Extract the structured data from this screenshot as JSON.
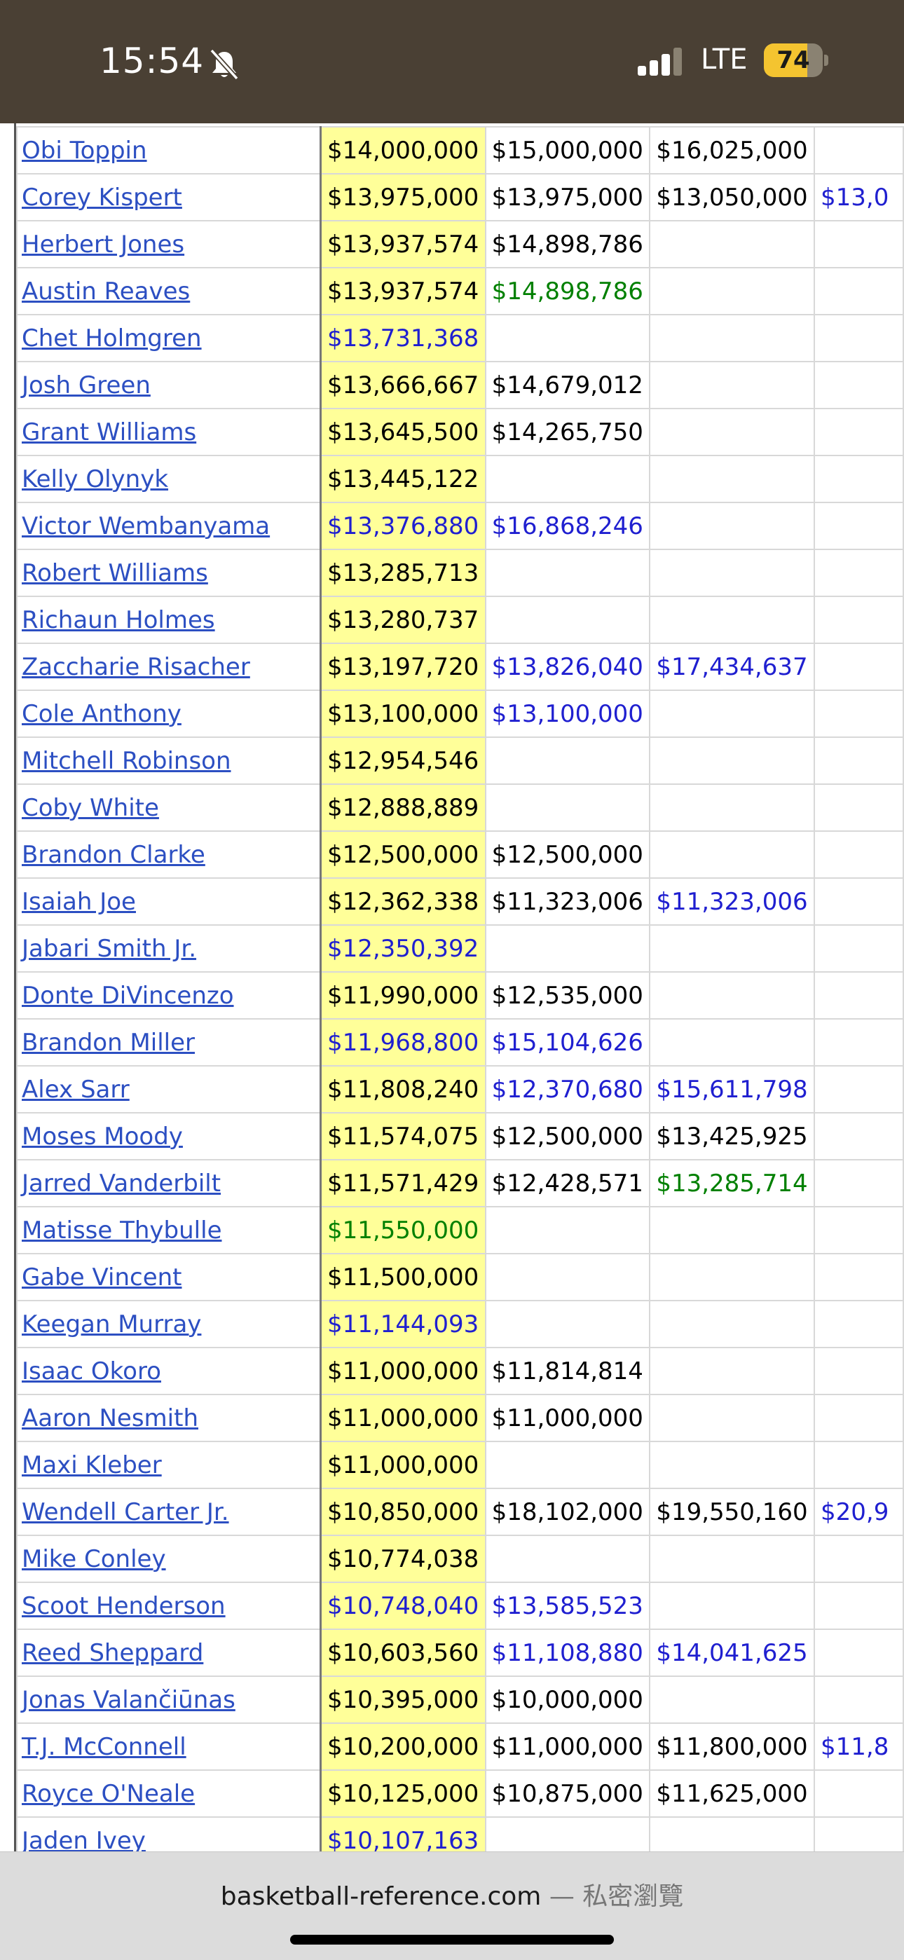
{
  "status_bar": {
    "time": "15:54",
    "network": "LTE",
    "battery_level": "74",
    "battery_fraction": 0.74,
    "icons": [
      "bell-slash-icon",
      "cellular-signal-icon",
      "battery-icon"
    ]
  },
  "table": {
    "rows": [
      {
        "player": "Obi Toppin",
        "c1": {
          "v": "$14,000,000",
          "t": "pl"
        },
        "c2": {
          "v": "$15,000,000",
          "t": "pl"
        },
        "c3": {
          "v": "$16,025,000",
          "t": "pl"
        },
        "c4": {
          "v": "",
          "t": "pl"
        }
      },
      {
        "player": "Corey Kispert",
        "c1": {
          "v": "$13,975,000",
          "t": "pl"
        },
        "c2": {
          "v": "$13,975,000",
          "t": "pl"
        },
        "c3": {
          "v": "$13,050,000",
          "t": "pl"
        },
        "c4": {
          "v": "$13,0",
          "t": "opt"
        }
      },
      {
        "player": "Herbert Jones",
        "c1": {
          "v": "$13,937,574",
          "t": "pl"
        },
        "c2": {
          "v": "$14,898,786",
          "t": "pl"
        },
        "c3": {
          "v": "",
          "t": "pl"
        },
        "c4": {
          "v": "",
          "t": "pl"
        }
      },
      {
        "player": "Austin Reaves",
        "c1": {
          "v": "$13,937,574",
          "t": "pl"
        },
        "c2": {
          "v": "$14,898,786",
          "t": "grn"
        },
        "c3": {
          "v": "",
          "t": "pl"
        },
        "c4": {
          "v": "",
          "t": "pl"
        }
      },
      {
        "player": "Chet Holmgren",
        "c1": {
          "v": "$13,731,368",
          "t": "opt"
        },
        "c2": {
          "v": "",
          "t": "pl"
        },
        "c3": {
          "v": "",
          "t": "pl"
        },
        "c4": {
          "v": "",
          "t": "pl"
        }
      },
      {
        "player": "Josh Green",
        "c1": {
          "v": "$13,666,667",
          "t": "pl"
        },
        "c2": {
          "v": "$14,679,012",
          "t": "pl"
        },
        "c3": {
          "v": "",
          "t": "pl"
        },
        "c4": {
          "v": "",
          "t": "pl"
        }
      },
      {
        "player": "Grant Williams",
        "c1": {
          "v": "$13,645,500",
          "t": "pl"
        },
        "c2": {
          "v": "$14,265,750",
          "t": "pl"
        },
        "c3": {
          "v": "",
          "t": "pl"
        },
        "c4": {
          "v": "",
          "t": "pl"
        }
      },
      {
        "player": "Kelly Olynyk",
        "c1": {
          "v": "$13,445,122",
          "t": "pl"
        },
        "c2": {
          "v": "",
          "t": "pl"
        },
        "c3": {
          "v": "",
          "t": "pl"
        },
        "c4": {
          "v": "",
          "t": "pl"
        }
      },
      {
        "player": "Victor Wembanyama",
        "c1": {
          "v": "$13,376,880",
          "t": "opt"
        },
        "c2": {
          "v": "$16,868,246",
          "t": "opt"
        },
        "c3": {
          "v": "",
          "t": "pl"
        },
        "c4": {
          "v": "",
          "t": "pl"
        }
      },
      {
        "player": "Robert Williams",
        "c1": {
          "v": "$13,285,713",
          "t": "pl"
        },
        "c2": {
          "v": "",
          "t": "pl"
        },
        "c3": {
          "v": "",
          "t": "pl"
        },
        "c4": {
          "v": "",
          "t": "pl"
        }
      },
      {
        "player": "Richaun Holmes",
        "c1": {
          "v": "$13,280,737",
          "t": "pl"
        },
        "c2": {
          "v": "",
          "t": "pl"
        },
        "c3": {
          "v": "",
          "t": "pl"
        },
        "c4": {
          "v": "",
          "t": "pl"
        }
      },
      {
        "player": "Zaccharie Risacher",
        "c1": {
          "v": "$13,197,720",
          "t": "pl"
        },
        "c2": {
          "v": "$13,826,040",
          "t": "opt"
        },
        "c3": {
          "v": "$17,434,637",
          "t": "opt"
        },
        "c4": {
          "v": "",
          "t": "pl"
        }
      },
      {
        "player": "Cole Anthony",
        "c1": {
          "v": "$13,100,000",
          "t": "pl"
        },
        "c2": {
          "v": "$13,100,000",
          "t": "opt"
        },
        "c3": {
          "v": "",
          "t": "pl"
        },
        "c4": {
          "v": "",
          "t": "pl"
        }
      },
      {
        "player": "Mitchell Robinson",
        "c1": {
          "v": "$12,954,546",
          "t": "pl"
        },
        "c2": {
          "v": "",
          "t": "pl"
        },
        "c3": {
          "v": "",
          "t": "pl"
        },
        "c4": {
          "v": "",
          "t": "pl"
        }
      },
      {
        "player": "Coby White",
        "c1": {
          "v": "$12,888,889",
          "t": "pl"
        },
        "c2": {
          "v": "",
          "t": "pl"
        },
        "c3": {
          "v": "",
          "t": "pl"
        },
        "c4": {
          "v": "",
          "t": "pl"
        }
      },
      {
        "player": "Brandon Clarke",
        "c1": {
          "v": "$12,500,000",
          "t": "pl"
        },
        "c2": {
          "v": "$12,500,000",
          "t": "pl"
        },
        "c3": {
          "v": "",
          "t": "pl"
        },
        "c4": {
          "v": "",
          "t": "pl"
        }
      },
      {
        "player": "Isaiah Joe",
        "c1": {
          "v": "$12,362,338",
          "t": "pl"
        },
        "c2": {
          "v": "$11,323,006",
          "t": "pl"
        },
        "c3": {
          "v": "$11,323,006",
          "t": "opt"
        },
        "c4": {
          "v": "",
          "t": "pl"
        }
      },
      {
        "player": "Jabari Smith Jr.",
        "c1": {
          "v": "$12,350,392",
          "t": "opt"
        },
        "c2": {
          "v": "",
          "t": "pl"
        },
        "c3": {
          "v": "",
          "t": "pl"
        },
        "c4": {
          "v": "",
          "t": "pl"
        }
      },
      {
        "player": "Donte DiVincenzo",
        "c1": {
          "v": "$11,990,000",
          "t": "pl"
        },
        "c2": {
          "v": "$12,535,000",
          "t": "pl"
        },
        "c3": {
          "v": "",
          "t": "pl"
        },
        "c4": {
          "v": "",
          "t": "pl"
        }
      },
      {
        "player": "Brandon Miller",
        "c1": {
          "v": "$11,968,800",
          "t": "opt"
        },
        "c2": {
          "v": "$15,104,626",
          "t": "opt"
        },
        "c3": {
          "v": "",
          "t": "pl"
        },
        "c4": {
          "v": "",
          "t": "pl"
        }
      },
      {
        "player": "Alex Sarr",
        "c1": {
          "v": "$11,808,240",
          "t": "pl"
        },
        "c2": {
          "v": "$12,370,680",
          "t": "opt"
        },
        "c3": {
          "v": "$15,611,798",
          "t": "opt"
        },
        "c4": {
          "v": "",
          "t": "pl"
        }
      },
      {
        "player": "Moses Moody",
        "c1": {
          "v": "$11,574,075",
          "t": "pl"
        },
        "c2": {
          "v": "$12,500,000",
          "t": "pl"
        },
        "c3": {
          "v": "$13,425,925",
          "t": "pl"
        },
        "c4": {
          "v": "",
          "t": "pl"
        }
      },
      {
        "player": "Jarred Vanderbilt",
        "c1": {
          "v": "$11,571,429",
          "t": "pl"
        },
        "c2": {
          "v": "$12,428,571",
          "t": "pl"
        },
        "c3": {
          "v": "$13,285,714",
          "t": "grn"
        },
        "c4": {
          "v": "",
          "t": "pl"
        }
      },
      {
        "player": "Matisse Thybulle",
        "c1": {
          "v": "$11,550,000",
          "t": "grn"
        },
        "c2": {
          "v": "",
          "t": "pl"
        },
        "c3": {
          "v": "",
          "t": "pl"
        },
        "c4": {
          "v": "",
          "t": "pl"
        }
      },
      {
        "player": "Gabe Vincent",
        "c1": {
          "v": "$11,500,000",
          "t": "pl"
        },
        "c2": {
          "v": "",
          "t": "pl"
        },
        "c3": {
          "v": "",
          "t": "pl"
        },
        "c4": {
          "v": "",
          "t": "pl"
        }
      },
      {
        "player": "Keegan Murray",
        "c1": {
          "v": "$11,144,093",
          "t": "opt"
        },
        "c2": {
          "v": "",
          "t": "pl"
        },
        "c3": {
          "v": "",
          "t": "pl"
        },
        "c4": {
          "v": "",
          "t": "pl"
        }
      },
      {
        "player": "Isaac Okoro",
        "c1": {
          "v": "$11,000,000",
          "t": "pl"
        },
        "c2": {
          "v": "$11,814,814",
          "t": "pl"
        },
        "c3": {
          "v": "",
          "t": "pl"
        },
        "c4": {
          "v": "",
          "t": "pl"
        }
      },
      {
        "player": "Aaron Nesmith",
        "c1": {
          "v": "$11,000,000",
          "t": "pl"
        },
        "c2": {
          "v": "$11,000,000",
          "t": "pl"
        },
        "c3": {
          "v": "",
          "t": "pl"
        },
        "c4": {
          "v": "",
          "t": "pl"
        }
      },
      {
        "player": "Maxi Kleber",
        "c1": {
          "v": "$11,000,000",
          "t": "pl"
        },
        "c2": {
          "v": "",
          "t": "pl"
        },
        "c3": {
          "v": "",
          "t": "pl"
        },
        "c4": {
          "v": "",
          "t": "pl"
        }
      },
      {
        "player": "Wendell Carter Jr.",
        "c1": {
          "v": "$10,850,000",
          "t": "pl"
        },
        "c2": {
          "v": "$18,102,000",
          "t": "pl"
        },
        "c3": {
          "v": "$19,550,160",
          "t": "pl"
        },
        "c4": {
          "v": "$20,9",
          "t": "opt"
        }
      },
      {
        "player": "Mike Conley",
        "c1": {
          "v": "$10,774,038",
          "t": "pl"
        },
        "c2": {
          "v": "",
          "t": "pl"
        },
        "c3": {
          "v": "",
          "t": "pl"
        },
        "c4": {
          "v": "",
          "t": "pl"
        }
      },
      {
        "player": "Scoot Henderson",
        "c1": {
          "v": "$10,748,040",
          "t": "opt"
        },
        "c2": {
          "v": "$13,585,523",
          "t": "opt"
        },
        "c3": {
          "v": "",
          "t": "pl"
        },
        "c4": {
          "v": "",
          "t": "pl"
        }
      },
      {
        "player": "Reed Sheppard",
        "c1": {
          "v": "$10,603,560",
          "t": "pl"
        },
        "c2": {
          "v": "$11,108,880",
          "t": "opt"
        },
        "c3": {
          "v": "$14,041,625",
          "t": "opt"
        },
        "c4": {
          "v": "",
          "t": "pl"
        }
      },
      {
        "player": "Jonas Valančiūnas",
        "c1": {
          "v": "$10,395,000",
          "t": "pl"
        },
        "c2": {
          "v": "$10,000,000",
          "t": "pl"
        },
        "c3": {
          "v": "",
          "t": "pl"
        },
        "c4": {
          "v": "",
          "t": "pl"
        }
      },
      {
        "player": "T.J. McConnell",
        "c1": {
          "v": "$10,200,000",
          "t": "pl"
        },
        "c2": {
          "v": "$11,000,000",
          "t": "pl"
        },
        "c3": {
          "v": "$11,800,000",
          "t": "pl"
        },
        "c4": {
          "v": "$11,8",
          "t": "opt"
        }
      },
      {
        "player": "Royce O'Neale",
        "c1": {
          "v": "$10,125,000",
          "t": "pl"
        },
        "c2": {
          "v": "$10,875,000",
          "t": "pl"
        },
        "c3": {
          "v": "$11,625,000",
          "t": "pl"
        },
        "c4": {
          "v": "",
          "t": "pl"
        }
      },
      {
        "player": "Jaden Ivey",
        "c1": {
          "v": "$10,107,163",
          "t": "opt"
        },
        "c2": {
          "v": "",
          "t": "pl"
        },
        "c3": {
          "v": "",
          "t": "pl"
        },
        "c4": {
          "v": "",
          "t": "pl"
        }
      },
      {
        "player": "",
        "c1": {
          "v": "",
          "t": "pl"
        },
        "c2": {
          "v": "",
          "t": "pl"
        },
        "c3": {
          "v": "",
          "t": "pl"
        },
        "c4": {
          "v": "",
          "t": "pl"
        }
      }
    ]
  },
  "bottom_bar": {
    "domain": "basketball-reference.com",
    "separator": "—",
    "mode": "私密瀏覽"
  },
  "colors": {
    "status_bar_bg": "#4a4034",
    "link": "#2c4fc2",
    "option_blue": "#1f1fd0",
    "option_green": "#008000",
    "current_season_bg": "#ffff99",
    "battery_fill": "#f4c430"
  }
}
